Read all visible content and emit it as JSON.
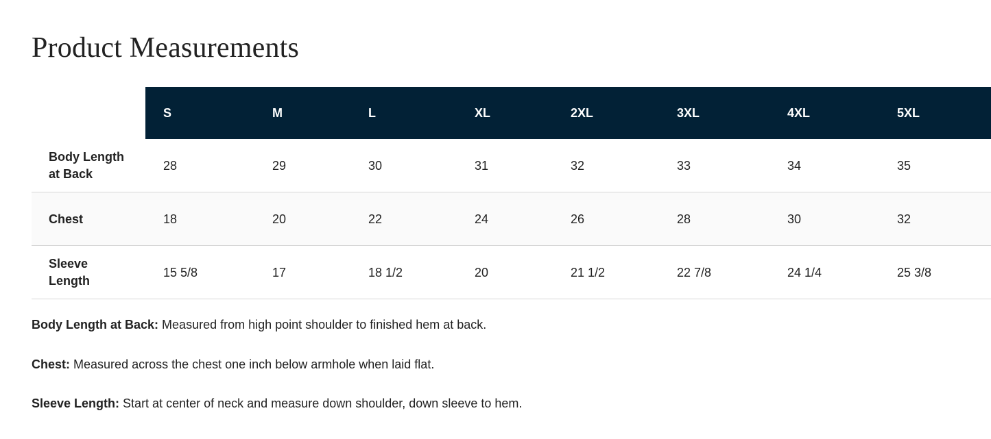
{
  "header": {
    "title": "Product Measurements"
  },
  "table": {
    "columns": [
      "S",
      "M",
      "L",
      "XL",
      "2XL",
      "3XL",
      "4XL",
      "5XL"
    ],
    "rows": [
      {
        "label": "Body Length at Back",
        "cells": [
          "28",
          "29",
          "30",
          "31",
          "32",
          "33",
          "34",
          "35"
        ]
      },
      {
        "label": "Chest",
        "cells": [
          "18",
          "20",
          "22",
          "24",
          "26",
          "28",
          "30",
          "32"
        ]
      },
      {
        "label": "Sleeve Length",
        "cells": [
          "15 5/8",
          "17",
          "18 1/2",
          "20",
          "21 1/2",
          "22 7/8",
          "24 1/4",
          "25 3/8"
        ]
      }
    ]
  },
  "notes": [
    {
      "term": "Body Length at Back:",
      "text": "Measured from high point shoulder to finished hem at back."
    },
    {
      "term": "Chest:",
      "text": "Measured across the chest one inch below armhole when laid flat."
    },
    {
      "term": "Sleeve Length:",
      "text": "Start at center of neck and measure down shoulder, down sleeve to hem."
    }
  ]
}
